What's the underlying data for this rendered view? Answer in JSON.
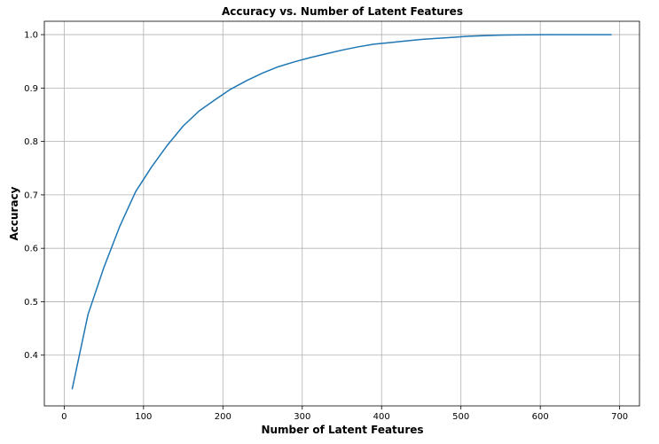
{
  "chart_data": {
    "type": "line",
    "title": "Accuracy vs. Number of Latent Features",
    "xlabel": "Number of Latent Features",
    "ylabel": "Accuracy",
    "xlim": [
      -25,
      725
    ],
    "ylim": [
      0.305,
      1.025
    ],
    "grid": true,
    "line_color": "#1f77b4",
    "xticks": [
      0,
      100,
      200,
      300,
      400,
      500,
      600,
      700
    ],
    "yticks": [
      0.4,
      0.5,
      0.6,
      0.7,
      0.8,
      0.9,
      1.0
    ],
    "xtick_labels": [
      "0",
      "100",
      "200",
      "300",
      "400",
      "500",
      "600",
      "700"
    ],
    "ytick_labels": [
      "0.4",
      "0.5",
      "0.6",
      "0.7",
      "0.8",
      "0.9",
      "1.0"
    ],
    "series": [
      {
        "x": [
          10,
          30,
          50,
          70,
          90,
          110,
          130,
          150,
          170,
          190,
          210,
          230,
          250,
          270,
          290,
          310,
          330,
          350,
          370,
          390,
          410,
          430,
          450,
          470,
          490,
          510,
          530,
          550,
          570,
          590,
          610,
          630,
          650,
          670,
          690
        ],
        "values": [
          0.336,
          0.476,
          0.564,
          0.641,
          0.706,
          0.752,
          0.793,
          0.829,
          0.857,
          0.878,
          0.898,
          0.914,
          0.928,
          0.94,
          0.949,
          0.957,
          0.964,
          0.971,
          0.977,
          0.982,
          0.985,
          0.988,
          0.991,
          0.993,
          0.995,
          0.997,
          0.998,
          0.999,
          0.9995,
          0.9998,
          1.0,
          1.0,
          1.0,
          1.0,
          1.0
        ]
      }
    ]
  }
}
